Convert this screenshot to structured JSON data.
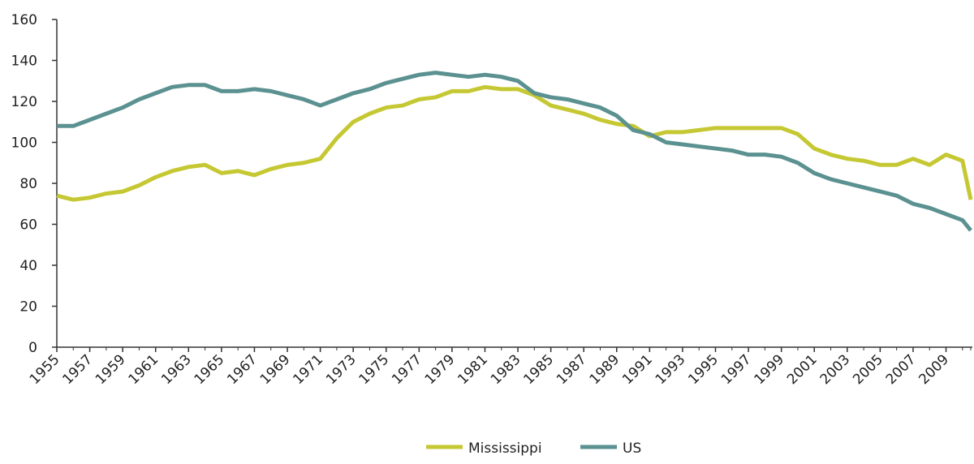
{
  "chart_data": {
    "type": "line",
    "x": [
      1955,
      1956,
      1957,
      1958,
      1959,
      1960,
      1961,
      1962,
      1963,
      1964,
      1965,
      1966,
      1967,
      1968,
      1969,
      1970,
      1971,
      1972,
      1973,
      1974,
      1975,
      1976,
      1977,
      1978,
      1979,
      1980,
      1981,
      1982,
      1983,
      1984,
      1985,
      1986,
      1987,
      1988,
      1989,
      1990,
      1991,
      1992,
      1993,
      1994,
      1995,
      1996,
      1997,
      1998,
      1999,
      2000,
      2001,
      2002,
      2003,
      2004,
      2005,
      2006,
      2007,
      2008,
      2009,
      2010,
      2010.5
    ],
    "series": [
      {
        "name": "Mississippi",
        "color": "#c5c832",
        "values": [
          74,
          72,
          73,
          75,
          76,
          79,
          83,
          86,
          88,
          89,
          85,
          86,
          84,
          87,
          89,
          90,
          92,
          102,
          110,
          114,
          117,
          118,
          121,
          122,
          125,
          125,
          127,
          126,
          126,
          123,
          118,
          116,
          114,
          111,
          109,
          108,
          103,
          105,
          105,
          106,
          107,
          107,
          107,
          107,
          107,
          104,
          97,
          94,
          92,
          91,
          89,
          89,
          92,
          89,
          94,
          91,
          72
        ]
      },
      {
        "name": "US",
        "color": "#5b9190",
        "values": [
          108,
          108,
          111,
          114,
          117,
          121,
          124,
          127,
          128,
          128,
          125,
          125,
          126,
          125,
          123,
          121,
          118,
          121,
          124,
          126,
          129,
          131,
          133,
          134,
          133,
          132,
          133,
          132,
          130,
          124,
          122,
          121,
          119,
          117,
          113,
          106,
          104,
          100,
          99,
          98,
          97,
          96,
          94,
          94,
          93,
          90,
          85,
          82,
          80,
          78,
          76,
          74,
          70,
          68,
          65,
          62,
          57
        ]
      }
    ],
    "xlim": [
      1955,
      2010.6
    ],
    "xticks": [
      1955,
      1957,
      1959,
      1961,
      1963,
      1965,
      1967,
      1969,
      1971,
      1973,
      1975,
      1977,
      1979,
      1981,
      1983,
      1985,
      1987,
      1989,
      1991,
      1993,
      1995,
      1997,
      1999,
      2001,
      2003,
      2005,
      2007,
      2009
    ],
    "ylim": [
      0,
      160
    ],
    "yticks": [
      0,
      20,
      40,
      60,
      80,
      100,
      120,
      140,
      160
    ],
    "grid": false,
    "legend": "bottom"
  }
}
